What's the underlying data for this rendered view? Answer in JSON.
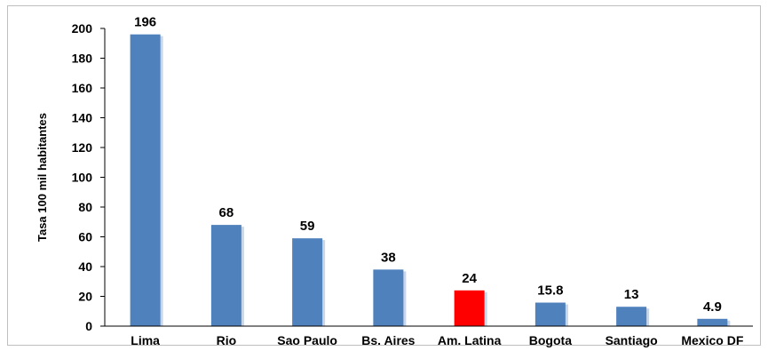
{
  "chart_data": {
    "type": "bar",
    "title": "",
    "xlabel": "",
    "ylabel": "Tasa 100 mil habitantes",
    "ylim": [
      0,
      200
    ],
    "yticks": [
      0,
      20,
      40,
      60,
      80,
      100,
      120,
      140,
      160,
      180,
      200
    ],
    "grid": false,
    "legend": "none",
    "categories": [
      "Lima",
      "Rio",
      "Sao Paulo",
      "Bs. Aires",
      "Am. Latina",
      "Bogota",
      "Santiago",
      "Mexico DF"
    ],
    "values": [
      196,
      68,
      59,
      38,
      24,
      15.8,
      13,
      4.9
    ],
    "data_labels": [
      "196",
      "68",
      "59",
      "38",
      "24",
      "15.8",
      "13",
      "4.9"
    ],
    "bar_colors": [
      "#4f81bd",
      "#4f81bd",
      "#4f81bd",
      "#4f81bd",
      "#ff0000",
      "#4f81bd",
      "#4f81bd",
      "#4f81bd"
    ]
  },
  "colors": {
    "default_bar": "#4f81bd",
    "highlight_bar": "#ff0000",
    "axis": "#000000"
  }
}
